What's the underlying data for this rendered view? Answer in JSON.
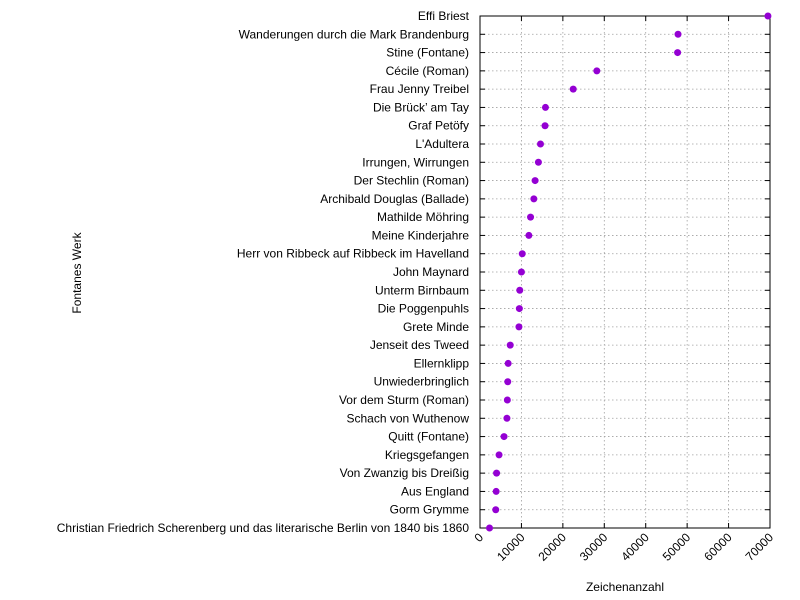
{
  "chart_data": {
    "type": "scatter",
    "orientation": "horizontal",
    "xlabel": "Zeichenanzahl",
    "ylabel": "Fontanes Werk",
    "xlim": [
      0,
      70000
    ],
    "xticks": [
      0,
      10000,
      20000,
      30000,
      40000,
      50000,
      60000,
      70000
    ],
    "grid": true,
    "marker_color": "#9400d3",
    "categories": [
      "Effi Briest",
      "Wanderungen durch die Mark Brandenburg",
      "Stine (Fontane)",
      "Cécile (Roman)",
      "Frau Jenny Treibel",
      "Die Brück’ am Tay",
      "Graf Petöfy",
      "L'Adultera",
      "Irrungen, Wirrungen",
      "Der Stechlin (Roman)",
      "Archibald Douglas (Ballade)",
      "Mathilde Möhring",
      "Meine Kinderjahre",
      "Herr von Ribbeck auf Ribbeck im Havelland",
      "John Maynard",
      "Unterm Birnbaum",
      "Die Poggenpuhls",
      "Grete Minde",
      "Jenseit des Tweed",
      "Ellernklipp",
      "Unwiederbringlich",
      "Vor dem Sturm (Roman)",
      "Schach von Wuthenow",
      "Quitt (Fontane)",
      "Kriegsgefangen",
      "Von Zwanzig bis Dreißig",
      "Aus England",
      "Gorm Grymme",
      "Christian Friedrich Scherenberg und das literarische Berlin von 1840 bis 1860"
    ],
    "values": [
      69500,
      47800,
      47700,
      28200,
      22500,
      15800,
      15700,
      14600,
      14100,
      13300,
      13000,
      12200,
      11800,
      10200,
      10000,
      9600,
      9500,
      9400,
      7300,
      6800,
      6700,
      6600,
      6500,
      5800,
      4600,
      4000,
      3900,
      3800,
      2300
    ]
  }
}
